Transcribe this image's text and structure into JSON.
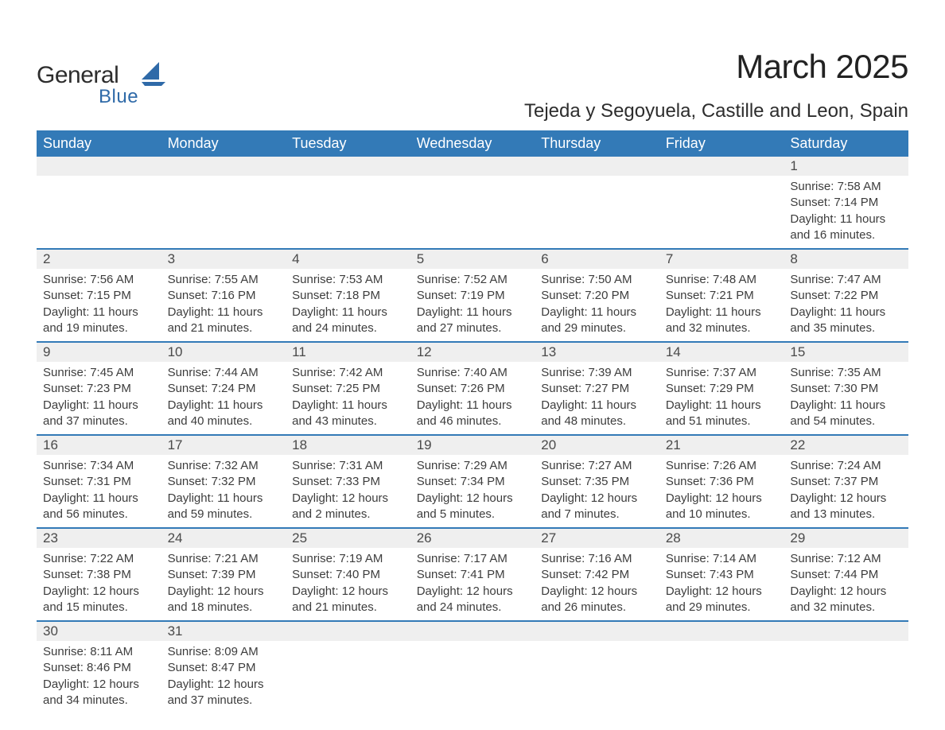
{
  "brand": {
    "word1": "General",
    "word2": "Blue",
    "word1_color": "#2d2d2d",
    "word2_color": "#2f6aa8",
    "shape_color": "#2f6aa8"
  },
  "title": "March 2025",
  "subtitle": "Tejeda y Segoyuela, Castille and Leon, Spain",
  "colors": {
    "header_bg": "#337ab7",
    "header_text": "#ffffff",
    "row_divider": "#337ab7",
    "daynum_bg": "#efefef",
    "text": "#3a3a3a",
    "background": "#ffffff"
  },
  "fonts": {
    "title_size_pt": 32,
    "subtitle_size_pt": 18,
    "header_size_pt": 14,
    "daynum_size_pt": 13,
    "body_size_pt": 11
  },
  "calendar": {
    "type": "table",
    "columns": [
      "Sunday",
      "Monday",
      "Tuesday",
      "Wednesday",
      "Thursday",
      "Friday",
      "Saturday"
    ],
    "weeks": [
      [
        null,
        null,
        null,
        null,
        null,
        null,
        {
          "day": "1",
          "sunrise": "7:58 AM",
          "sunset": "7:14 PM",
          "daylight": "11 hours and 16 minutes."
        }
      ],
      [
        {
          "day": "2",
          "sunrise": "7:56 AM",
          "sunset": "7:15 PM",
          "daylight": "11 hours and 19 minutes."
        },
        {
          "day": "3",
          "sunrise": "7:55 AM",
          "sunset": "7:16 PM",
          "daylight": "11 hours and 21 minutes."
        },
        {
          "day": "4",
          "sunrise": "7:53 AM",
          "sunset": "7:18 PM",
          "daylight": "11 hours and 24 minutes."
        },
        {
          "day": "5",
          "sunrise": "7:52 AM",
          "sunset": "7:19 PM",
          "daylight": "11 hours and 27 minutes."
        },
        {
          "day": "6",
          "sunrise": "7:50 AM",
          "sunset": "7:20 PM",
          "daylight": "11 hours and 29 minutes."
        },
        {
          "day": "7",
          "sunrise": "7:48 AM",
          "sunset": "7:21 PM",
          "daylight": "11 hours and 32 minutes."
        },
        {
          "day": "8",
          "sunrise": "7:47 AM",
          "sunset": "7:22 PM",
          "daylight": "11 hours and 35 minutes."
        }
      ],
      [
        {
          "day": "9",
          "sunrise": "7:45 AM",
          "sunset": "7:23 PM",
          "daylight": "11 hours and 37 minutes."
        },
        {
          "day": "10",
          "sunrise": "7:44 AM",
          "sunset": "7:24 PM",
          "daylight": "11 hours and 40 minutes."
        },
        {
          "day": "11",
          "sunrise": "7:42 AM",
          "sunset": "7:25 PM",
          "daylight": "11 hours and 43 minutes."
        },
        {
          "day": "12",
          "sunrise": "7:40 AM",
          "sunset": "7:26 PM",
          "daylight": "11 hours and 46 minutes."
        },
        {
          "day": "13",
          "sunrise": "7:39 AM",
          "sunset": "7:27 PM",
          "daylight": "11 hours and 48 minutes."
        },
        {
          "day": "14",
          "sunrise": "7:37 AM",
          "sunset": "7:29 PM",
          "daylight": "11 hours and 51 minutes."
        },
        {
          "day": "15",
          "sunrise": "7:35 AM",
          "sunset": "7:30 PM",
          "daylight": "11 hours and 54 minutes."
        }
      ],
      [
        {
          "day": "16",
          "sunrise": "7:34 AM",
          "sunset": "7:31 PM",
          "daylight": "11 hours and 56 minutes."
        },
        {
          "day": "17",
          "sunrise": "7:32 AM",
          "sunset": "7:32 PM",
          "daylight": "11 hours and 59 minutes."
        },
        {
          "day": "18",
          "sunrise": "7:31 AM",
          "sunset": "7:33 PM",
          "daylight": "12 hours and 2 minutes."
        },
        {
          "day": "19",
          "sunrise": "7:29 AM",
          "sunset": "7:34 PM",
          "daylight": "12 hours and 5 minutes."
        },
        {
          "day": "20",
          "sunrise": "7:27 AM",
          "sunset": "7:35 PM",
          "daylight": "12 hours and 7 minutes."
        },
        {
          "day": "21",
          "sunrise": "7:26 AM",
          "sunset": "7:36 PM",
          "daylight": "12 hours and 10 minutes."
        },
        {
          "day": "22",
          "sunrise": "7:24 AM",
          "sunset": "7:37 PM",
          "daylight": "12 hours and 13 minutes."
        }
      ],
      [
        {
          "day": "23",
          "sunrise": "7:22 AM",
          "sunset": "7:38 PM",
          "daylight": "12 hours and 15 minutes."
        },
        {
          "day": "24",
          "sunrise": "7:21 AM",
          "sunset": "7:39 PM",
          "daylight": "12 hours and 18 minutes."
        },
        {
          "day": "25",
          "sunrise": "7:19 AM",
          "sunset": "7:40 PM",
          "daylight": "12 hours and 21 minutes."
        },
        {
          "day": "26",
          "sunrise": "7:17 AM",
          "sunset": "7:41 PM",
          "daylight": "12 hours and 24 minutes."
        },
        {
          "day": "27",
          "sunrise": "7:16 AM",
          "sunset": "7:42 PM",
          "daylight": "12 hours and 26 minutes."
        },
        {
          "day": "28",
          "sunrise": "7:14 AM",
          "sunset": "7:43 PM",
          "daylight": "12 hours and 29 minutes."
        },
        {
          "day": "29",
          "sunrise": "7:12 AM",
          "sunset": "7:44 PM",
          "daylight": "12 hours and 32 minutes."
        }
      ],
      [
        {
          "day": "30",
          "sunrise": "8:11 AM",
          "sunset": "8:46 PM",
          "daylight": "12 hours and 34 minutes."
        },
        {
          "day": "31",
          "sunrise": "8:09 AM",
          "sunset": "8:47 PM",
          "daylight": "12 hours and 37 minutes."
        },
        null,
        null,
        null,
        null,
        null
      ]
    ],
    "labels": {
      "sunrise": "Sunrise:",
      "sunset": "Sunset:",
      "daylight": "Daylight:"
    }
  }
}
